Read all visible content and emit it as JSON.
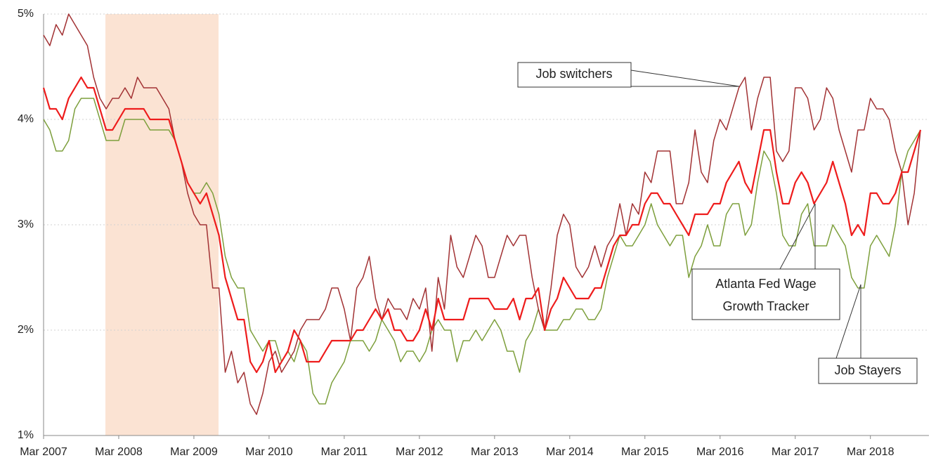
{
  "chart_data": {
    "type": "line",
    "categories": [
      "Mar 2007",
      null,
      null,
      null,
      null,
      null,
      null,
      null,
      null,
      null,
      null,
      null,
      "Mar 2008",
      null,
      null,
      null,
      null,
      null,
      null,
      null,
      null,
      null,
      null,
      null,
      "Mar 2009",
      null,
      null,
      null,
      null,
      null,
      null,
      null,
      null,
      null,
      null,
      null,
      "Mar 2010",
      null,
      null,
      null,
      null,
      null,
      null,
      null,
      null,
      null,
      null,
      null,
      "Mar 2011",
      null,
      null,
      null,
      null,
      null,
      null,
      null,
      null,
      null,
      null,
      null,
      "Mar 2012",
      null,
      null,
      null,
      null,
      null,
      null,
      null,
      null,
      null,
      null,
      null,
      "Mar 2013",
      null,
      null,
      null,
      null,
      null,
      null,
      null,
      null,
      null,
      null,
      null,
      "Mar 2014",
      null,
      null,
      null,
      null,
      null,
      null,
      null,
      null,
      null,
      null,
      null,
      "Mar 2015",
      null,
      null,
      null,
      null,
      null,
      null,
      null,
      null,
      null,
      null,
      null,
      "Mar 2016",
      null,
      null,
      null,
      null,
      null,
      null,
      null,
      null,
      null,
      null,
      null,
      "Mar 2017",
      null,
      null,
      null,
      null,
      null,
      null,
      null,
      null,
      null,
      null,
      null,
      "Mar 2018",
      null,
      null,
      null,
      null,
      null,
      null,
      null,
      null
    ],
    "series": [
      {
        "name": "Job switchers",
        "color": "#a23234",
        "values": [
          4.8,
          4.7,
          4.9,
          4.8,
          5.0,
          4.9,
          4.8,
          4.7,
          4.4,
          4.2,
          4.1,
          4.2,
          4.2,
          4.3,
          4.2,
          4.4,
          4.3,
          4.3,
          4.3,
          4.2,
          4.1,
          3.8,
          3.6,
          3.3,
          3.1,
          3.0,
          3.0,
          2.4,
          2.4,
          1.6,
          1.8,
          1.5,
          1.6,
          1.3,
          1.2,
          1.4,
          1.7,
          1.8,
          1.6,
          1.7,
          1.8,
          2.0,
          2.1,
          2.1,
          2.1,
          2.2,
          2.4,
          2.4,
          2.2,
          1.9,
          2.4,
          2.5,
          2.7,
          2.3,
          2.1,
          2.3,
          2.2,
          2.2,
          2.1,
          2.3,
          2.2,
          2.4,
          1.8,
          2.5,
          2.2,
          2.9,
          2.6,
          2.5,
          2.7,
          2.9,
          2.8,
          2.5,
          2.5,
          2.7,
          2.9,
          2.8,
          2.9,
          2.9,
          2.5,
          2.2,
          2.0,
          2.4,
          2.9,
          3.1,
          3.0,
          2.6,
          2.5,
          2.6,
          2.8,
          2.6,
          2.8,
          2.9,
          3.2,
          2.9,
          3.2,
          3.1,
          3.5,
          3.4,
          3.7,
          3.7,
          3.7,
          3.2,
          3.2,
          3.4,
          3.9,
          3.5,
          3.4,
          3.8,
          4.0,
          3.9,
          4.1,
          4.3,
          4.4,
          3.9,
          4.2,
          4.4,
          4.4,
          3.7,
          3.6,
          3.7,
          4.3,
          4.3,
          4.2,
          3.9,
          4.0,
          4.3,
          4.2,
          3.9,
          3.7,
          3.5,
          3.9,
          3.9,
          4.2,
          4.1,
          4.1,
          4.0,
          3.7,
          3.5,
          3.0,
          3.3,
          3.9
        ]
      },
      {
        "name": "Atlanta Fed Wage Growth Tracker",
        "color": "#ee1c1c",
        "values": [
          4.3,
          4.1,
          4.1,
          4.0,
          4.2,
          4.3,
          4.4,
          4.3,
          4.3,
          4.1,
          3.9,
          3.9,
          4.0,
          4.1,
          4.1,
          4.1,
          4.1,
          4.0,
          4.0,
          4.0,
          4.0,
          3.8,
          3.6,
          3.4,
          3.3,
          3.2,
          3.3,
          3.1,
          2.9,
          2.5,
          2.3,
          2.1,
          2.1,
          1.7,
          1.6,
          1.7,
          1.9,
          1.6,
          1.7,
          1.8,
          2.0,
          1.9,
          1.7,
          1.7,
          1.7,
          1.8,
          1.9,
          1.9,
          1.9,
          1.9,
          2.0,
          2.0,
          2.1,
          2.2,
          2.1,
          2.2,
          2.0,
          2.0,
          1.9,
          1.9,
          2.0,
          2.2,
          2.0,
          2.3,
          2.1,
          2.1,
          2.1,
          2.1,
          2.3,
          2.3,
          2.3,
          2.3,
          2.2,
          2.2,
          2.2,
          2.3,
          2.1,
          2.3,
          2.3,
          2.4,
          2.0,
          2.2,
          2.3,
          2.5,
          2.4,
          2.3,
          2.3,
          2.3,
          2.4,
          2.4,
          2.6,
          2.8,
          2.9,
          2.9,
          3.0,
          3.0,
          3.2,
          3.3,
          3.3,
          3.2,
          3.2,
          3.1,
          3.0,
          2.9,
          3.1,
          3.1,
          3.1,
          3.2,
          3.2,
          3.4,
          3.5,
          3.6,
          3.4,
          3.3,
          3.6,
          3.9,
          3.9,
          3.5,
          3.2,
          3.2,
          3.4,
          3.5,
          3.4,
          3.2,
          3.3,
          3.4,
          3.6,
          3.4,
          3.2,
          2.9,
          3.0,
          2.9,
          3.3,
          3.3,
          3.2,
          3.2,
          3.3,
          3.5,
          3.5,
          3.7,
          3.9
        ]
      },
      {
        "name": "Job Stayers",
        "color": "#7d9f3c",
        "values": [
          4.0,
          3.9,
          3.7,
          3.7,
          3.8,
          4.1,
          4.2,
          4.2,
          4.2,
          4.0,
          3.8,
          3.8,
          3.8,
          4.0,
          4.0,
          4.0,
          4.0,
          3.9,
          3.9,
          3.9,
          3.9,
          3.8,
          3.6,
          3.4,
          3.3,
          3.3,
          3.4,
          3.3,
          3.1,
          2.7,
          2.5,
          2.4,
          2.4,
          2.0,
          1.9,
          1.8,
          1.9,
          1.9,
          1.7,
          1.8,
          1.7,
          1.9,
          1.8,
          1.4,
          1.3,
          1.3,
          1.5,
          1.6,
          1.7,
          1.9,
          1.9,
          1.9,
          1.8,
          1.9,
          2.1,
          2.0,
          1.9,
          1.7,
          1.8,
          1.8,
          1.7,
          1.8,
          2.0,
          2.1,
          2.0,
          2.0,
          1.7,
          1.9,
          1.9,
          2.0,
          1.9,
          2.0,
          2.1,
          2.0,
          1.8,
          1.8,
          1.6,
          1.9,
          2.0,
          2.2,
          2.0,
          2.0,
          2.0,
          2.1,
          2.1,
          2.2,
          2.2,
          2.1,
          2.1,
          2.2,
          2.5,
          2.7,
          2.9,
          2.8,
          2.8,
          2.9,
          3.0,
          3.2,
          3.0,
          2.9,
          2.8,
          2.9,
          2.9,
          2.5,
          2.7,
          2.8,
          3.0,
          2.8,
          2.8,
          3.1,
          3.2,
          3.2,
          2.9,
          3.0,
          3.4,
          3.7,
          3.6,
          3.3,
          2.9,
          2.8,
          2.8,
          3.1,
          3.2,
          2.8,
          2.8,
          2.8,
          3.0,
          2.9,
          2.8,
          2.5,
          2.4,
          2.4,
          2.8,
          2.9,
          2.8,
          2.7,
          3.0,
          3.5,
          3.7,
          3.8,
          3.9
        ]
      }
    ],
    "ylim": [
      1,
      5
    ],
    "yticks": [
      {
        "value": 1,
        "label": "1%"
      },
      {
        "value": 2,
        "label": "2%"
      },
      {
        "value": 3,
        "label": "3%"
      },
      {
        "value": 4,
        "label": "4%"
      },
      {
        "value": 5,
        "label": "5%"
      }
    ],
    "grid": true,
    "annotations": [
      {
        "lines": [
          "Job switchers"
        ]
      },
      {
        "lines": [
          "Atlanta Fed Wage",
          "Growth Tracker"
        ]
      },
      {
        "lines": [
          "Job Stayers"
        ]
      }
    ]
  }
}
